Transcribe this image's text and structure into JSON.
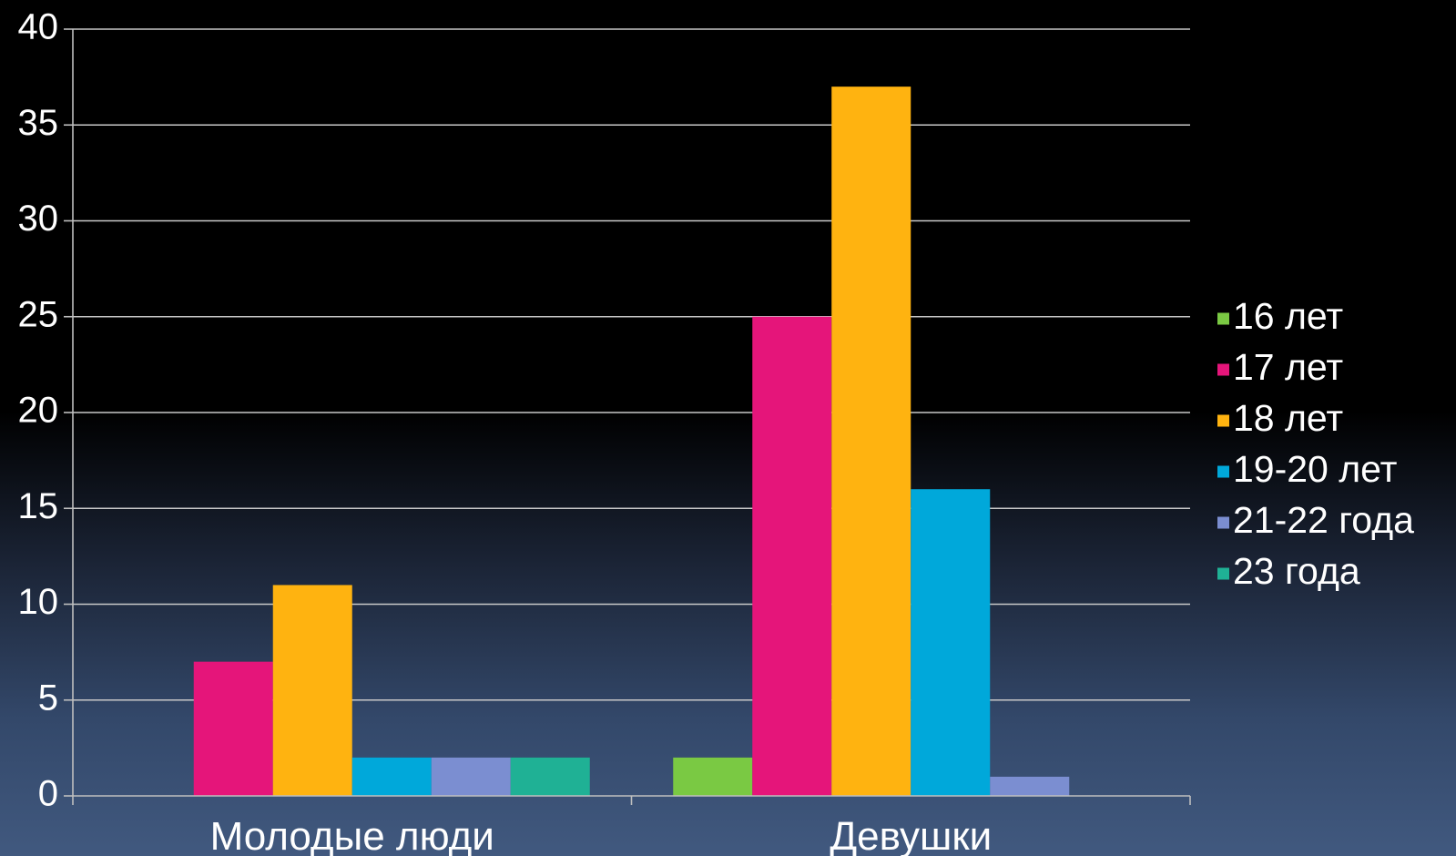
{
  "chart_data": {
    "type": "bar",
    "categories": [
      "Молодые люди",
      "Девушки"
    ],
    "series": [
      {
        "name": "16 лет",
        "color": "#7ac943",
        "values": [
          0,
          2
        ]
      },
      {
        "name": "17 лет",
        "color": "#e5157a",
        "values": [
          7,
          25
        ]
      },
      {
        "name": "18 лет",
        "color": "#ffb310",
        "values": [
          11,
          37
        ]
      },
      {
        "name": "19-20 лет",
        "color": "#00a8da",
        "values": [
          2,
          16
        ]
      },
      {
        "name": "21-22 года",
        "color": "#7b8ed1",
        "values": [
          2,
          1
        ]
      },
      {
        "name": "23 года",
        "color": "#1fb195",
        "values": [
          2,
          0
        ]
      }
    ],
    "yticks": [
      0,
      5,
      10,
      15,
      20,
      25,
      30,
      35,
      40
    ],
    "ylim": [
      0,
      40
    ],
    "grid": true,
    "legend": "right",
    "colors": {
      "text": "#ffffff",
      "gridline": "#c8c8c8",
      "axis": "#bfbfbf"
    }
  }
}
